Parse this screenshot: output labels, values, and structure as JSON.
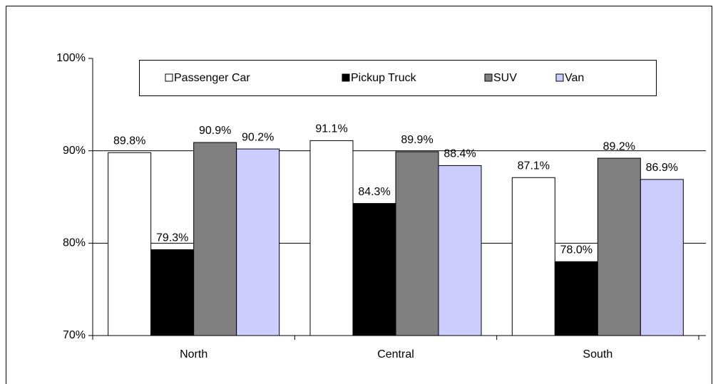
{
  "chart_data": {
    "type": "bar",
    "categories": [
      "North",
      "Central",
      "South"
    ],
    "series": [
      {
        "name": "Passenger Car",
        "color": "#ffffff",
        "values": [
          89.8,
          91.1,
          87.1
        ],
        "value_labels": [
          "89.8%",
          "91.1%",
          "87.1%"
        ]
      },
      {
        "name": "Pickup Truck",
        "color": "#000000",
        "values": [
          79.3,
          84.3,
          78.0
        ],
        "value_labels": [
          "79.3%",
          "84.3%",
          "78.0%"
        ]
      },
      {
        "name": "SUV",
        "color": "#808080",
        "values": [
          90.9,
          89.9,
          89.2
        ],
        "value_labels": [
          "90.9%",
          "89.9%",
          "89.2%"
        ]
      },
      {
        "name": "Van",
        "color": "#ccccff",
        "values": [
          90.2,
          88.4,
          86.9
        ],
        "value_labels": [
          "90.2%",
          "88.4%",
          "86.9%"
        ]
      }
    ],
    "ylim": [
      70,
      100
    ],
    "yticks": [
      {
        "value": 70,
        "label": "70%"
      },
      {
        "value": 80,
        "label": "80%"
      },
      {
        "value": 90,
        "label": "90%"
      },
      {
        "value": 100,
        "label": "100%"
      }
    ],
    "grid": true,
    "legend": "top"
  }
}
